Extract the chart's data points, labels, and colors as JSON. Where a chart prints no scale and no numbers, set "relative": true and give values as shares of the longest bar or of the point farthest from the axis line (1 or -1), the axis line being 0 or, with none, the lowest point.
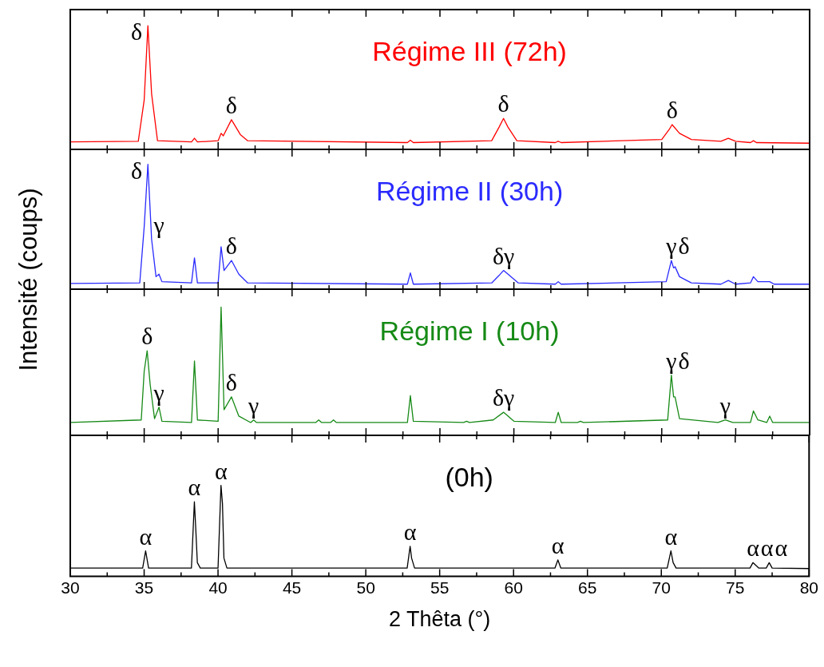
{
  "chart_data": [
    {
      "type": "line",
      "title": "Régime III (72h)",
      "ylabel": "Intensité (coups)",
      "relative": true,
      "tick_labels": false,
      "xlim": [
        30,
        80
      ],
      "xticks": [
        30,
        {
          "value": 32.5,
          "label": null
        },
        35,
        {
          "value": 37.5,
          "label": null
        },
        40,
        {
          "value": 42.5,
          "label": null
        },
        45,
        {
          "value": 47.5,
          "label": null
        },
        50,
        {
          "value": 52.5,
          "label": null
        },
        55,
        {
          "value": 57.5,
          "label": null
        },
        60,
        {
          "value": 62.5,
          "label": null
        },
        65,
        {
          "value": 67.5,
          "label": null
        },
        70,
        {
          "value": 72.5,
          "label": null
        },
        75,
        {
          "value": 77.5,
          "label": null
        },
        80
      ],
      "x": [
        30,
        34.6,
        35.0,
        35.25,
        35.5,
        35.9,
        38.2,
        38.4,
        38.6,
        40.0,
        40.2,
        40.35,
        40.9,
        41.5,
        42.0,
        52.8,
        53.0,
        53.2,
        58.5,
        59.0,
        59.3,
        59.6,
        60.2,
        62.8,
        63.0,
        63.2,
        70.0,
        70.5,
        70.7,
        71.2,
        72.0,
        74.0,
        74.5,
        75.0,
        76.0,
        76.2,
        76.4,
        80
      ],
      "series": [
        {
          "color": "#ff0000",
          "values": [
            0.06,
            0.065,
            0.4,
            1.0,
            0.45,
            0.07,
            0.06,
            0.09,
            0.06,
            0.07,
            0.13,
            0.11,
            0.24,
            0.12,
            0.07,
            0.055,
            0.075,
            0.055,
            0.07,
            0.18,
            0.25,
            0.18,
            0.07,
            0.055,
            0.065,
            0.055,
            0.08,
            0.16,
            0.2,
            0.13,
            0.08,
            0.065,
            0.09,
            0.065,
            0.055,
            0.07,
            0.055,
            0.05
          ]
        }
      ],
      "annotations": [
        {
          "text": "δ",
          "x": 35.25,
          "y": 1.0
        },
        {
          "text": "δ",
          "x": 40.9,
          "y": 0.24
        },
        {
          "text": "δ",
          "x": 59.3,
          "y": 0.25
        },
        {
          "text": "δ",
          "x": 70.7,
          "y": 0.2
        }
      ]
    },
    {
      "type": "line",
      "title": "Régime II (30h)",
      "relative": true,
      "tick_labels": false,
      "xlim": [
        30,
        80
      ],
      "xticks": [
        30,
        {
          "value": 32.5,
          "label": null
        },
        35,
        {
          "value": 37.5,
          "label": null
        },
        40,
        {
          "value": 42.5,
          "label": null
        },
        45,
        {
          "value": 47.5,
          "label": null
        },
        50,
        {
          "value": 52.5,
          "label": null
        },
        55,
        {
          "value": 57.5,
          "label": null
        },
        60,
        {
          "value": 62.5,
          "label": null
        },
        65,
        {
          "value": 67.5,
          "label": null
        },
        70,
        {
          "value": 72.5,
          "label": null
        },
        75,
        {
          "value": 77.5,
          "label": null
        },
        80
      ],
      "x": [
        30,
        34.7,
        35.0,
        35.25,
        35.5,
        35.8,
        36.0,
        36.2,
        38.2,
        38.4,
        38.6,
        40.0,
        40.2,
        40.4,
        40.9,
        41.4,
        42.0,
        52.8,
        53.0,
        53.2,
        58.5,
        59.0,
        59.3,
        59.7,
        60.3,
        62.8,
        63.0,
        63.2,
        70.3,
        70.65,
        70.8,
        70.9,
        71.2,
        72.0,
        74.0,
        74.5,
        75.0,
        76.0,
        76.2,
        76.5,
        77.3,
        77.6,
        80
      ],
      "series": [
        {
          "color": "#2a2aff",
          "values": [
            0.045,
            0.05,
            0.5,
            1.0,
            0.4,
            0.1,
            0.12,
            0.06,
            0.05,
            0.25,
            0.05,
            0.05,
            0.34,
            0.15,
            0.23,
            0.12,
            0.05,
            0.04,
            0.13,
            0.04,
            0.05,
            0.11,
            0.15,
            0.11,
            0.05,
            0.04,
            0.06,
            0.04,
            0.06,
            0.23,
            0.17,
            0.18,
            0.1,
            0.05,
            0.04,
            0.07,
            0.04,
            0.05,
            0.1,
            0.06,
            0.06,
            0.04,
            0.04
          ]
        }
      ],
      "annotations": [
        {
          "text": "δ",
          "x": 35.25,
          "y": 1.0
        },
        {
          "text": "γ",
          "x": 36.0,
          "y": 0.12
        },
        {
          "text": "δ",
          "x": 40.9,
          "y": 0.23
        },
        {
          "text": "δγ",
          "x": 59.3,
          "y": 0.15
        },
        {
          "text": "γ",
          "x": 70.65,
          "y": 0.23
        },
        {
          "text": "δ",
          "x": 70.9,
          "y": 0.18
        }
      ]
    },
    {
      "type": "line",
      "title": "Régime I (10h)",
      "relative": true,
      "tick_labels": false,
      "xlim": [
        30,
        80
      ],
      "xticks": [
        30,
        {
          "value": 32.5,
          "label": null
        },
        35,
        {
          "value": 37.5,
          "label": null
        },
        40,
        {
          "value": 42.5,
          "label": null
        },
        45,
        {
          "value": 47.5,
          "label": null
        },
        50,
        {
          "value": 52.5,
          "label": null
        },
        55,
        {
          "value": 57.5,
          "label": null
        },
        60,
        {
          "value": 62.5,
          "label": null
        },
        65,
        {
          "value": 67.5,
          "label": null
        },
        70,
        {
          "value": 72.5,
          "label": null
        },
        75,
        {
          "value": 77.5,
          "label": null
        },
        80
      ],
      "x": [
        30,
        34.8,
        35.0,
        35.2,
        35.4,
        35.7,
        36.0,
        36.2,
        38.2,
        38.4,
        38.6,
        40.0,
        40.2,
        40.4,
        40.9,
        41.4,
        42.2,
        42.4,
        42.6,
        46.6,
        46.8,
        47.0,
        47.6,
        47.8,
        48.0,
        52.8,
        53.0,
        53.2,
        56.6,
        56.8,
        57.0,
        58.6,
        59.3,
        60.0,
        62.8,
        63.0,
        63.2,
        64.3,
        64.5,
        64.7,
        70.4,
        70.65,
        70.8,
        70.9,
        71.2,
        73.8,
        74.3,
        74.8,
        76.0,
        76.2,
        76.5,
        77.1,
        77.3,
        77.5,
        80
      ],
      "series": [
        {
          "color": "#168a16",
          "values": [
            0.1,
            0.12,
            0.5,
            0.66,
            0.4,
            0.13,
            0.22,
            0.11,
            0.1,
            0.58,
            0.12,
            0.11,
            1.0,
            0.2,
            0.3,
            0.15,
            0.1,
            0.12,
            0.1,
            0.1,
            0.12,
            0.1,
            0.1,
            0.12,
            0.1,
            0.1,
            0.31,
            0.11,
            0.1,
            0.11,
            0.1,
            0.12,
            0.18,
            0.11,
            0.1,
            0.18,
            0.1,
            0.1,
            0.11,
            0.1,
            0.12,
            0.47,
            0.3,
            0.3,
            0.13,
            0.1,
            0.12,
            0.1,
            0.1,
            0.19,
            0.12,
            0.1,
            0.15,
            0.1,
            0.1
          ]
        }
      ],
      "annotations": [
        {
          "text": "δ",
          "x": 35.2,
          "y": 0.66
        },
        {
          "text": "γ",
          "x": 36.0,
          "y": 0.22
        },
        {
          "text": "δ",
          "x": 40.9,
          "y": 0.3
        },
        {
          "text": "γ",
          "x": 42.4,
          "y": 0.12
        },
        {
          "text": "δγ",
          "x": 59.3,
          "y": 0.18
        },
        {
          "text": "γ",
          "x": 70.65,
          "y": 0.47
        },
        {
          "text": "δ",
          "x": 70.9,
          "y": 0.3
        },
        {
          "text": "γ",
          "x": 74.3,
          "y": 0.12
        }
      ]
    },
    {
      "type": "line",
      "title": "(0h)",
      "xlabel": "2 Thêta (°)",
      "relative": true,
      "tick_labels": "x",
      "xlim": [
        30,
        80
      ],
      "xticks": [
        30,
        {
          "value": 32.5,
          "label": null
        },
        35,
        {
          "value": 37.5,
          "label": null
        },
        40,
        {
          "value": 42.5,
          "label": null
        },
        45,
        {
          "value": 47.5,
          "label": null
        },
        50,
        {
          "value": 52.5,
          "label": null
        },
        55,
        {
          "value": 57.5,
          "label": null
        },
        60,
        {
          "value": 62.5,
          "label": null
        },
        65,
        {
          "value": 67.5,
          "label": null
        },
        70,
        {
          "value": 72.5,
          "label": null
        },
        75,
        {
          "value": 77.5,
          "label": null
        },
        80
      ],
      "x": [
        30,
        34.9,
        35.1,
        35.3,
        38.2,
        38.4,
        38.5,
        38.6,
        38.8,
        40.0,
        40.2,
        40.3,
        40.4,
        40.6,
        52.8,
        53.0,
        53.1,
        53.3,
        62.8,
        63.0,
        63.2,
        70.4,
        70.65,
        70.8,
        71.0,
        76.0,
        76.2,
        76.4,
        76.6,
        77.1,
        77.3,
        77.5,
        80
      ],
      "series": [
        {
          "color": "#000000",
          "values": [
            0.09,
            0.09,
            0.28,
            0.09,
            0.09,
            0.82,
            0.5,
            0.15,
            0.09,
            0.09,
            1.0,
            0.8,
            0.2,
            0.09,
            0.09,
            0.33,
            0.2,
            0.09,
            0.09,
            0.18,
            0.09,
            0.09,
            0.28,
            0.15,
            0.09,
            0.09,
            0.15,
            0.12,
            0.09,
            0.09,
            0.15,
            0.09,
            0.085
          ]
        }
      ],
      "annotations": [
        {
          "text": "α",
          "x": 35.1,
          "y": 0.28
        },
        {
          "text": "α",
          "x": 38.4,
          "y": 0.82
        },
        {
          "text": "α",
          "x": 40.2,
          "y": 1.0
        },
        {
          "text": "α",
          "x": 53.0,
          "y": 0.33
        },
        {
          "text": "α",
          "x": 63.0,
          "y": 0.18
        },
        {
          "text": "α",
          "x": 70.65,
          "y": 0.28
        },
        {
          "text": "α",
          "x": 76.2,
          "y": 0.15
        },
        {
          "text": "α",
          "x": 76.4,
          "y": 0.12
        },
        {
          "text": "α",
          "x": 77.3,
          "y": 0.15
        }
      ]
    }
  ]
}
